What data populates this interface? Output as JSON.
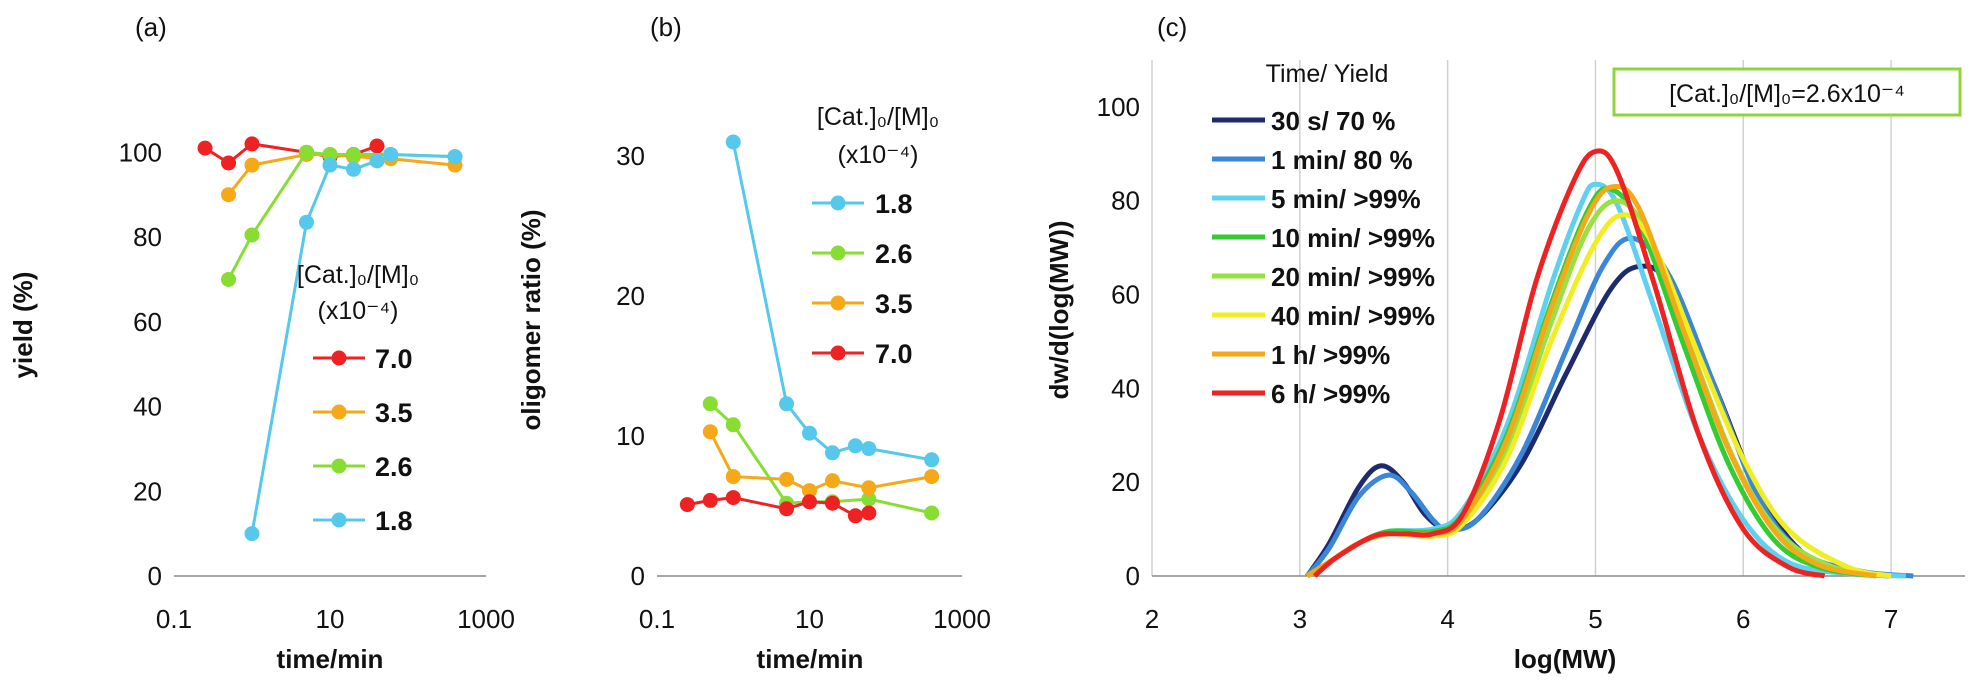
{
  "chart_data": [
    {
      "type": "line",
      "panel_label": "(a)",
      "xscale": "log",
      "xlabel": "time/min",
      "ylabel": "yield (%)",
      "xlim": [
        0.1,
        1000
      ],
      "ylim": [
        0,
        110
      ],
      "xticks": [
        {
          "value": 0.1,
          "label": "0.1"
        },
        {
          "value": 10,
          "label": "10"
        },
        {
          "value": 1000,
          "label": "1000"
        }
      ],
      "yticks": [
        {
          "value": 0,
          "label": "0"
        },
        {
          "value": 20,
          "label": "20"
        },
        {
          "value": 40,
          "label": "40"
        },
        {
          "value": 60,
          "label": "60"
        },
        {
          "value": 80,
          "label": "80"
        },
        {
          "value": 100,
          "label": "100"
        }
      ],
      "legend_title": [
        "[Cat.]₀/[M]₀",
        "(x10⁻⁴)"
      ],
      "series": [
        {
          "name": "7.0",
          "color": "#ee2222",
          "x": [
            0.25,
            0.5,
            1,
            5,
            10,
            20,
            40
          ],
          "y": [
            101,
            97.5,
            102,
            100,
            99,
            99.5,
            101.5
          ]
        },
        {
          "name": "3.5",
          "color": "#f5a818",
          "x": [
            0.5,
            1,
            5,
            10,
            20,
            60,
            400
          ],
          "y": [
            90,
            97,
            99.5,
            99.5,
            99,
            98.5,
            97
          ]
        },
        {
          "name": "2.6",
          "color": "#88dd33",
          "x": [
            0.5,
            1,
            5,
            10,
            20,
            60,
            400
          ],
          "y": [
            70,
            80.5,
            100,
            99.5,
            99.5,
            99.5,
            99
          ]
        },
        {
          "name": "1.8",
          "color": "#55c8ec",
          "x": [
            1,
            5,
            10,
            20,
            40,
            60,
            400
          ],
          "y": [
            10,
            83.5,
            97,
            96,
            98,
            99.5,
            99
          ]
        }
      ]
    },
    {
      "type": "line",
      "panel_label": "(b)",
      "xscale": "log",
      "xlabel": "time/min",
      "ylabel": "oligomer ratio (%)",
      "xlim": [
        0.1,
        1000
      ],
      "ylim": [
        0,
        35
      ],
      "xticks": [
        {
          "value": 0.1,
          "label": "0.1"
        },
        {
          "value": 10,
          "label": "10"
        },
        {
          "value": 1000,
          "label": "1000"
        }
      ],
      "yticks": [
        {
          "value": 0,
          "label": "0"
        },
        {
          "value": 10,
          "label": "10"
        },
        {
          "value": 20,
          "label": "20"
        },
        {
          "value": 30,
          "label": "30"
        }
      ],
      "legend_title": [
        "[Cat.]₀/[M]₀",
        "(x10⁻⁴)"
      ],
      "series": [
        {
          "name": "1.8",
          "color": "#55c8ec",
          "x": [
            1,
            5,
            10,
            20,
            40,
            60,
            400
          ],
          "y": [
            31,
            12.3,
            10.2,
            8.8,
            9.3,
            9.1,
            8.3
          ]
        },
        {
          "name": "2.6",
          "color": "#88dd33",
          "x": [
            0.5,
            1,
            5,
            10,
            20,
            60,
            400
          ],
          "y": [
            12.3,
            10.8,
            5.2,
            5.3,
            5.3,
            5.5,
            4.5
          ]
        },
        {
          "name": "3.5",
          "color": "#f5a818",
          "x": [
            0.5,
            1,
            5,
            10,
            20,
            60,
            400
          ],
          "y": [
            10.3,
            7.1,
            6.9,
            6.1,
            6.8,
            6.3,
            7.1
          ]
        },
        {
          "name": "7.0",
          "color": "#ee2222",
          "x": [
            0.25,
            0.5,
            1,
            5,
            10,
            20,
            40,
            60
          ],
          "y": [
            5.1,
            5.4,
            5.6,
            4.8,
            5.3,
            5.2,
            4.3,
            4.5
          ]
        }
      ]
    },
    {
      "type": "line",
      "panel_label": "(c)",
      "xlabel": "log(MW)",
      "ylabel": "dw/d(log(MW))",
      "xlim": [
        2,
        7.5
      ],
      "ylim": [
        0,
        110
      ],
      "grid": "vertical",
      "xticks": [
        {
          "value": 2,
          "label": "2"
        },
        {
          "value": 3,
          "label": "3"
        },
        {
          "value": 4,
          "label": "4"
        },
        {
          "value": 5,
          "label": "5"
        },
        {
          "value": 6,
          "label": "6"
        },
        {
          "value": 7,
          "label": "7"
        }
      ],
      "yticks": [
        {
          "value": 0,
          "label": "0"
        },
        {
          "value": 20,
          "label": "20"
        },
        {
          "value": 40,
          "label": "40"
        },
        {
          "value": 60,
          "label": "60"
        },
        {
          "value": 80,
          "label": "80"
        },
        {
          "value": 100,
          "label": "100"
        }
      ],
      "legend_title": "Time/ Yield",
      "annotation": "[Cat.]₀/[M]₀=2.6x10⁻⁴",
      "series": [
        {
          "name": "30 s/ 70 %",
          "color": "#1e2b6e",
          "points": [
            [
              3.05,
              0
            ],
            [
              3.2,
              7
            ],
            [
              3.4,
              19
            ],
            [
              3.55,
              23.5
            ],
            [
              3.7,
              20
            ],
            [
              3.85,
              13
            ],
            [
              4.0,
              10
            ],
            [
              4.2,
              12
            ],
            [
              4.5,
              24
            ],
            [
              4.8,
              43
            ],
            [
              5.1,
              61
            ],
            [
              5.3,
              66
            ],
            [
              5.5,
              62
            ],
            [
              5.8,
              41
            ],
            [
              6.1,
              18
            ],
            [
              6.4,
              5
            ],
            [
              6.7,
              1
            ],
            [
              7.0,
              0
            ]
          ]
        },
        {
          "name": "1 min/ 80 %",
          "color": "#3a86d8",
          "points": [
            [
              3.05,
              0
            ],
            [
              3.2,
              6
            ],
            [
              3.4,
              17
            ],
            [
              3.6,
              21.5
            ],
            [
              3.75,
              18
            ],
            [
              3.9,
              12
            ],
            [
              4.0,
              10
            ],
            [
              4.2,
              12
            ],
            [
              4.5,
              26
            ],
            [
              4.8,
              48
            ],
            [
              5.05,
              66
            ],
            [
              5.25,
              72
            ],
            [
              5.5,
              64
            ],
            [
              5.8,
              41
            ],
            [
              6.1,
              17
            ],
            [
              6.4,
              5
            ],
            [
              6.8,
              1
            ],
            [
              7.15,
              0
            ]
          ]
        },
        {
          "name": "5 min/ >99%",
          "color": "#5fd0ee",
          "points": [
            [
              3.05,
              0
            ],
            [
              3.2,
              3
            ],
            [
              3.4,
              7
            ],
            [
              3.6,
              9.5
            ],
            [
              3.9,
              10
            ],
            [
              4.1,
              14
            ],
            [
              4.4,
              32
            ],
            [
              4.7,
              62
            ],
            [
              4.9,
              79
            ],
            [
              5.0,
              83.5
            ],
            [
              5.15,
              79
            ],
            [
              5.4,
              57
            ],
            [
              5.7,
              30
            ],
            [
              6.0,
              12
            ],
            [
              6.3,
              3
            ],
            [
              6.7,
              0.5
            ],
            [
              7.1,
              0
            ]
          ]
        },
        {
          "name": "10 min/ >99%",
          "color": "#33cc33",
          "points": [
            [
              3.05,
              0
            ],
            [
              3.2,
              3
            ],
            [
              3.4,
              7
            ],
            [
              3.6,
              9.5
            ],
            [
              3.9,
              9.5
            ],
            [
              4.1,
              13
            ],
            [
              4.4,
              30
            ],
            [
              4.7,
              58
            ],
            [
              4.95,
              78
            ],
            [
              5.1,
              82.5
            ],
            [
              5.3,
              75
            ],
            [
              5.6,
              49
            ],
            [
              5.9,
              24
            ],
            [
              6.2,
              8
            ],
            [
              6.5,
              2
            ],
            [
              6.9,
              0
            ]
          ]
        },
        {
          "name": "20 min/ >99%",
          "color": "#99e044",
          "points": [
            [
              3.05,
              0
            ],
            [
              3.2,
              3
            ],
            [
              3.4,
              7
            ],
            [
              3.6,
              9
            ],
            [
              3.9,
              9
            ],
            [
              4.1,
              12
            ],
            [
              4.4,
              27
            ],
            [
              4.7,
              54
            ],
            [
              4.95,
              74
            ],
            [
              5.15,
              80
            ],
            [
              5.35,
              73
            ],
            [
              5.65,
              48
            ],
            [
              5.95,
              24
            ],
            [
              6.25,
              9
            ],
            [
              6.6,
              2
            ],
            [
              7.0,
              0
            ]
          ]
        },
        {
          "name": "40 min/ >99%",
          "color": "#f0ee22",
          "points": [
            [
              3.05,
              0
            ],
            [
              3.2,
              3
            ],
            [
              3.4,
              7
            ],
            [
              3.6,
              9
            ],
            [
              3.9,
              8.5
            ],
            [
              4.1,
              11
            ],
            [
              4.4,
              25
            ],
            [
              4.7,
              50
            ],
            [
              5.0,
              71
            ],
            [
              5.2,
              77
            ],
            [
              5.4,
              70
            ],
            [
              5.7,
              47
            ],
            [
              6.0,
              25
            ],
            [
              6.3,
              10
            ],
            [
              6.7,
              2
            ],
            [
              7.0,
              0
            ]
          ]
        },
        {
          "name": "1 h/ >99%",
          "color": "#f5a818",
          "points": [
            [
              3.05,
              0
            ],
            [
              3.2,
              3
            ],
            [
              3.4,
              7
            ],
            [
              3.6,
              9
            ],
            [
              3.9,
              9
            ],
            [
              4.1,
              12
            ],
            [
              4.4,
              29
            ],
            [
              4.7,
              57
            ],
            [
              4.95,
              77
            ],
            [
              5.12,
              83
            ],
            [
              5.3,
              78
            ],
            [
              5.6,
              52
            ],
            [
              5.9,
              27
            ],
            [
              6.2,
              10
            ],
            [
              6.5,
              2.5
            ],
            [
              6.9,
              0
            ]
          ]
        },
        {
          "name": "6 h/ >99%",
          "color": "#ee2222",
          "points": [
            [
              3.1,
              0
            ],
            [
              3.25,
              4
            ],
            [
              3.5,
              8.5
            ],
            [
              3.7,
              9
            ],
            [
              3.9,
              9
            ],
            [
              4.1,
              13
            ],
            [
              4.35,
              33
            ],
            [
              4.6,
              63
            ],
            [
              4.85,
              84
            ],
            [
              5.0,
              90.5
            ],
            [
              5.15,
              86
            ],
            [
              5.4,
              62
            ],
            [
              5.7,
              30
            ],
            [
              6.0,
              10
            ],
            [
              6.3,
              2
            ],
            [
              6.55,
              0
            ]
          ]
        }
      ]
    }
  ]
}
